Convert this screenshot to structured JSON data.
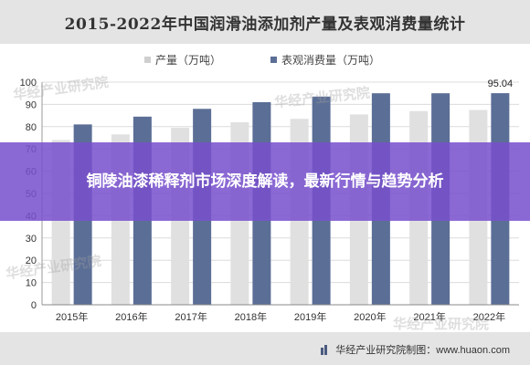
{
  "chart_data": {
    "type": "bar",
    "title": "2015-2022年中国润滑油添加剂产量及表观消费量统计",
    "categories": [
      "2015年",
      "2016年",
      "2017年",
      "2018年",
      "2019年",
      "2020年",
      "2021年",
      "2022年"
    ],
    "series": [
      {
        "name": "产量（万吨）",
        "color": "#e0e0e0",
        "values": [
          74,
          76.5,
          79.5,
          82,
          83.5,
          85.5,
          87,
          87.5
        ]
      },
      {
        "name": "表观消费量（万吨）",
        "color": "#5b6e96",
        "values": [
          81,
          84.5,
          88,
          91,
          93.5,
          95,
          95,
          95.04
        ]
      }
    ],
    "annotations": [
      {
        "series": 1,
        "index": 7,
        "text": "95.04"
      }
    ],
    "ylim": [
      0,
      100
    ],
    "yticks": [
      0,
      10,
      20,
      30,
      40,
      50,
      60,
      70,
      80,
      90,
      100
    ],
    "grid": true,
    "legend_position": "top-center"
  },
  "banner": {
    "text": "铜陵油漆稀释剂市场深度解读，最新行情与趋势分析"
  },
  "footer": {
    "text": "华经产业研究院制图：www.huaon.com"
  },
  "watermarks": [
    "华经产业研究院",
    "华经产业研究院",
    "华经产业研究院",
    "华经产业研究院"
  ],
  "colors": {
    "title_band": "#e4e4e4",
    "banner": "#7850cd",
    "bar_secondary": "#5b6e96"
  }
}
